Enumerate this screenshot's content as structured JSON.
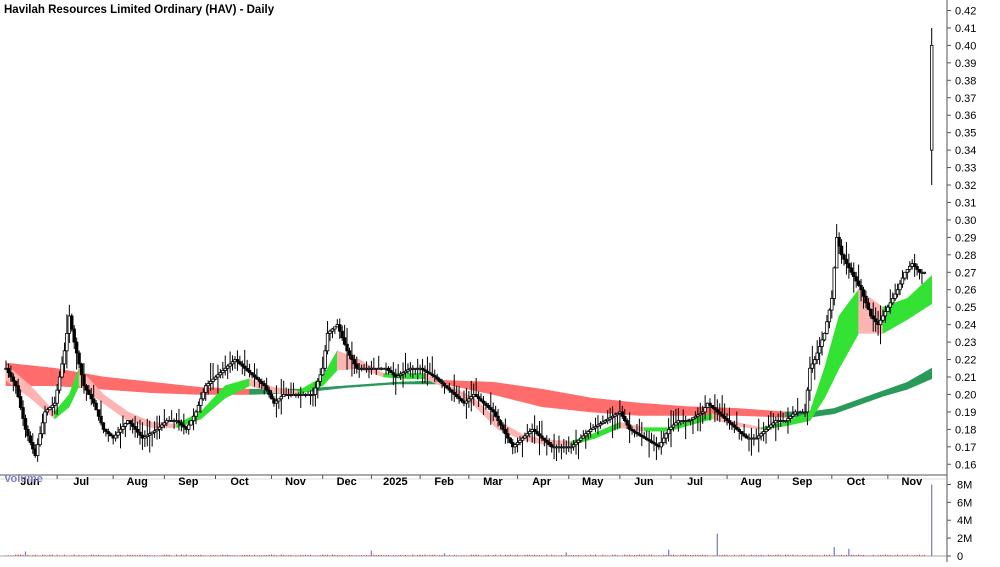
{
  "chart_data": {
    "type": "candlestick-with-ribbons",
    "title": "Havilah Resources Limited Ordinary (HAV) - Daily",
    "price_axis": {
      "min": 0.155,
      "max": 0.42,
      "ticks": [
        0.16,
        0.17,
        0.18,
        0.19,
        0.2,
        0.21,
        0.22,
        0.23,
        0.24,
        0.25,
        0.26,
        0.27,
        0.28,
        0.29,
        0.3,
        0.31,
        0.32,
        0.33,
        0.34,
        0.35,
        0.36,
        0.37,
        0.38,
        0.39,
        0.4,
        0.41,
        0.42
      ],
      "tick_labels": [
        "0.16",
        "0.17",
        "0.18",
        "0.19",
        "0.20",
        "0.21",
        "0.22",
        "0.23",
        "0.24",
        "0.25",
        "0.26",
        "0.27",
        "0.28",
        "0.29",
        "0.30",
        "0.31",
        "0.32",
        "0.33",
        "0.34",
        "0.35",
        "0.36",
        "0.37",
        "0.38",
        "0.39",
        "0.40",
        "0.41",
        "0.42"
      ]
    },
    "months": [
      {
        "label": "Jun",
        "t": 0.0
      },
      {
        "label": "Jul",
        "t": 21
      },
      {
        "label": "Aug",
        "t": 44
      },
      {
        "label": "Sep",
        "t": 65
      },
      {
        "label": "Oct",
        "t": 86
      },
      {
        "label": "Nov",
        "t": 109
      },
      {
        "label": "Dec",
        "t": 130
      },
      {
        "label": "2025",
        "t": 150
      },
      {
        "label": "Feb",
        "t": 170
      },
      {
        "label": "Mar",
        "t": 190
      },
      {
        "label": "Apr",
        "t": 210
      },
      {
        "label": "May",
        "t": 231
      },
      {
        "label": "Jun",
        "t": 252
      },
      {
        "label": "Jul",
        "t": 273
      },
      {
        "label": "Aug",
        "t": 296
      },
      {
        "label": "Sep",
        "t": 317
      },
      {
        "label": "Oct",
        "t": 339
      },
      {
        "label": "Nov",
        "t": 362
      }
    ],
    "price_keypoints": [
      [
        0,
        0.215
      ],
      [
        4,
        0.205
      ],
      [
        8,
        0.18
      ],
      [
        12,
        0.165
      ],
      [
        16,
        0.19
      ],
      [
        20,
        0.195
      ],
      [
        24,
        0.225
      ],
      [
        26,
        0.245
      ],
      [
        28,
        0.23
      ],
      [
        32,
        0.205
      ],
      [
        36,
        0.195
      ],
      [
        40,
        0.18
      ],
      [
        44,
        0.175
      ],
      [
        50,
        0.185
      ],
      [
        56,
        0.175
      ],
      [
        62,
        0.18
      ],
      [
        66,
        0.185
      ],
      [
        70,
        0.185
      ],
      [
        74,
        0.18
      ],
      [
        78,
        0.19
      ],
      [
        82,
        0.205
      ],
      [
        86,
        0.21
      ],
      [
        90,
        0.215
      ],
      [
        94,
        0.22
      ],
      [
        98,
        0.215
      ],
      [
        102,
        0.21
      ],
      [
        106,
        0.205
      ],
      [
        110,
        0.195
      ],
      [
        114,
        0.2
      ],
      [
        118,
        0.2
      ],
      [
        122,
        0.2
      ],
      [
        126,
        0.2
      ],
      [
        130,
        0.215
      ],
      [
        132,
        0.235
      ],
      [
        136,
        0.24
      ],
      [
        140,
        0.225
      ],
      [
        144,
        0.215
      ],
      [
        150,
        0.215
      ],
      [
        156,
        0.215
      ],
      [
        160,
        0.21
      ],
      [
        166,
        0.215
      ],
      [
        170,
        0.215
      ],
      [
        176,
        0.21
      ],
      [
        180,
        0.205
      ],
      [
        184,
        0.2
      ],
      [
        188,
        0.195
      ],
      [
        192,
        0.2
      ],
      [
        196,
        0.195
      ],
      [
        200,
        0.19
      ],
      [
        204,
        0.18
      ],
      [
        208,
        0.17
      ],
      [
        212,
        0.175
      ],
      [
        216,
        0.18
      ],
      [
        220,
        0.175
      ],
      [
        224,
        0.17
      ],
      [
        228,
        0.17
      ],
      [
        232,
        0.17
      ],
      [
        236,
        0.175
      ],
      [
        240,
        0.18
      ],
      [
        246,
        0.185
      ],
      [
        252,
        0.19
      ],
      [
        256,
        0.18
      ],
      [
        262,
        0.175
      ],
      [
        268,
        0.17
      ],
      [
        272,
        0.18
      ],
      [
        276,
        0.185
      ],
      [
        280,
        0.185
      ],
      [
        286,
        0.19
      ],
      [
        288,
        0.195
      ],
      [
        292,
        0.19
      ],
      [
        296,
        0.185
      ],
      [
        300,
        0.18
      ],
      [
        304,
        0.175
      ],
      [
        308,
        0.175
      ],
      [
        312,
        0.18
      ],
      [
        316,
        0.185
      ],
      [
        320,
        0.185
      ],
      [
        324,
        0.19
      ],
      [
        328,
        0.19
      ],
      [
        330,
        0.215
      ],
      [
        332,
        0.22
      ],
      [
        336,
        0.235
      ],
      [
        339,
        0.255
      ],
      [
        341,
        0.29
      ],
      [
        343,
        0.28
      ],
      [
        347,
        0.27
      ],
      [
        351,
        0.26
      ],
      [
        355,
        0.245
      ],
      [
        358,
        0.24
      ],
      [
        362,
        0.25
      ],
      [
        366,
        0.26
      ],
      [
        369,
        0.27
      ],
      [
        372,
        0.275
      ],
      [
        375,
        0.27
      ],
      [
        377,
        0.27
      ]
    ],
    "final_bar": {
      "t": 380,
      "open": 0.34,
      "high": 0.41,
      "low": 0.32,
      "close": 0.4
    },
    "ribbons": {
      "short_upper": [
        [
          0,
          0.217
        ],
        [
          10,
          0.205
        ],
        [
          20,
          0.19
        ],
        [
          26,
          0.2
        ],
        [
          30,
          0.215
        ],
        [
          40,
          0.2
        ],
        [
          50,
          0.19
        ],
        [
          60,
          0.184
        ],
        [
          70,
          0.183
        ],
        [
          80,
          0.19
        ],
        [
          90,
          0.205
        ],
        [
          100,
          0.209
        ],
        [
          110,
          0.204
        ],
        [
          120,
          0.202
        ],
        [
          130,
          0.21
        ],
        [
          136,
          0.225
        ],
        [
          145,
          0.22
        ],
        [
          155,
          0.212
        ],
        [
          165,
          0.212
        ],
        [
          172,
          0.212
        ],
        [
          182,
          0.205
        ],
        [
          192,
          0.198
        ],
        [
          202,
          0.185
        ],
        [
          212,
          0.177
        ],
        [
          222,
          0.174
        ],
        [
          232,
          0.173
        ],
        [
          242,
          0.178
        ],
        [
          252,
          0.184
        ],
        [
          262,
          0.181
        ],
        [
          272,
          0.181
        ],
        [
          282,
          0.186
        ],
        [
          290,
          0.189
        ],
        [
          300,
          0.184
        ],
        [
          310,
          0.181
        ],
        [
          320,
          0.184
        ],
        [
          330,
          0.19
        ],
        [
          336,
          0.215
        ],
        [
          342,
          0.245
        ],
        [
          350,
          0.26
        ],
        [
          360,
          0.25
        ],
        [
          370,
          0.255
        ],
        [
          380,
          0.268
        ]
      ],
      "short_lower": [
        [
          0,
          0.208
        ],
        [
          10,
          0.198
        ],
        [
          20,
          0.186
        ],
        [
          26,
          0.193
        ],
        [
          30,
          0.205
        ],
        [
          40,
          0.195
        ],
        [
          50,
          0.185
        ],
        [
          60,
          0.181
        ],
        [
          70,
          0.181
        ],
        [
          80,
          0.186
        ],
        [
          90,
          0.198
        ],
        [
          100,
          0.205
        ],
        [
          110,
          0.201
        ],
        [
          120,
          0.2
        ],
        [
          130,
          0.205
        ],
        [
          136,
          0.214
        ],
        [
          145,
          0.215
        ],
        [
          155,
          0.21
        ],
        [
          165,
          0.209
        ],
        [
          172,
          0.209
        ],
        [
          182,
          0.203
        ],
        [
          192,
          0.194
        ],
        [
          202,
          0.18
        ],
        [
          212,
          0.174
        ],
        [
          222,
          0.171
        ],
        [
          232,
          0.171
        ],
        [
          242,
          0.175
        ],
        [
          252,
          0.181
        ],
        [
          262,
          0.179
        ],
        [
          272,
          0.179
        ],
        [
          282,
          0.183
        ],
        [
          290,
          0.186
        ],
        [
          300,
          0.182
        ],
        [
          310,
          0.18
        ],
        [
          320,
          0.182
        ],
        [
          330,
          0.185
        ],
        [
          336,
          0.198
        ],
        [
          342,
          0.215
        ],
        [
          350,
          0.235
        ],
        [
          360,
          0.235
        ],
        [
          370,
          0.243
        ],
        [
          380,
          0.252
        ]
      ],
      "long_upper": [
        [
          0,
          0.218
        ],
        [
          20,
          0.215
        ],
        [
          40,
          0.21
        ],
        [
          60,
          0.207
        ],
        [
          80,
          0.204
        ],
        [
          100,
          0.203
        ],
        [
          120,
          0.203
        ],
        [
          140,
          0.205
        ],
        [
          160,
          0.207
        ],
        [
          180,
          0.208
        ],
        [
          200,
          0.207
        ],
        [
          220,
          0.203
        ],
        [
          240,
          0.198
        ],
        [
          260,
          0.195
        ],
        [
          280,
          0.193
        ],
        [
          300,
          0.192
        ],
        [
          320,
          0.19
        ],
        [
          330,
          0.19
        ],
        [
          340,
          0.192
        ],
        [
          350,
          0.197
        ],
        [
          360,
          0.202
        ],
        [
          370,
          0.207
        ],
        [
          380,
          0.215
        ]
      ],
      "long_lower": [
        [
          0,
          0.205
        ],
        [
          20,
          0.205
        ],
        [
          40,
          0.203
        ],
        [
          60,
          0.201
        ],
        [
          80,
          0.2
        ],
        [
          100,
          0.2
        ],
        [
          120,
          0.201
        ],
        [
          140,
          0.204
        ],
        [
          160,
          0.206
        ],
        [
          180,
          0.206
        ],
        [
          200,
          0.2
        ],
        [
          220,
          0.193
        ],
        [
          240,
          0.19
        ],
        [
          260,
          0.188
        ],
        [
          280,
          0.188
        ],
        [
          300,
          0.188
        ],
        [
          320,
          0.187
        ],
        [
          330,
          0.187
        ],
        [
          340,
          0.189
        ],
        [
          350,
          0.194
        ],
        [
          360,
          0.199
        ],
        [
          370,
          0.203
        ],
        [
          380,
          0.209
        ]
      ]
    },
    "volume": {
      "label": "Volume",
      "ticks": [
        0,
        2,
        4,
        6,
        8
      ],
      "tick_labels": [
        "0",
        "2M",
        "4M",
        "6M",
        "8M"
      ],
      "max": 8.5,
      "spikes": [
        [
          8,
          0.5
        ],
        [
          150,
          0.6
        ],
        [
          180,
          0.3
        ],
        [
          230,
          0.4
        ],
        [
          272,
          0.7
        ],
        [
          292,
          2.5
        ],
        [
          340,
          1.0
        ],
        [
          346,
          0.8
        ],
        [
          380,
          8.0
        ]
      ]
    },
    "colors": {
      "background": "#ffffff",
      "bar": "#000000",
      "bar_body_up": "#ffffff",
      "ribbon_up": "#33e233",
      "ribbon_down": "#ff6a2a",
      "long_up": "#2a9a5a",
      "long_down": "#ff6c6c",
      "short_mix": "#ffb4b4",
      "axis": "#555555",
      "volume_label": "#8080c0",
      "volume_bar": "#cc4444",
      "volume_spike": "#8080c0"
    }
  }
}
